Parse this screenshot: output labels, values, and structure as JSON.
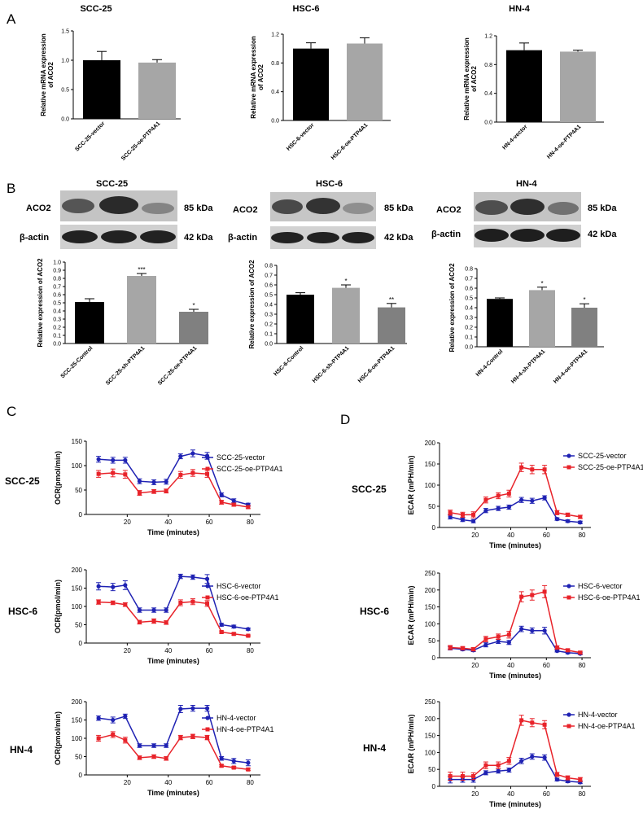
{
  "panels": {
    "a": "A",
    "b": "B",
    "c": "C",
    "d": "D"
  },
  "row_labels": {
    "scc25": "SCC-25",
    "hsc6": "HSC-6",
    "hn4": "HN-4"
  },
  "blots": [
    {
      "title": "SCC-25",
      "band1": "ACO2",
      "band2": "β-actin",
      "kda1": "85 kDa",
      "kda2": "42 kDa"
    },
    {
      "title": "HSC-6",
      "band1": "ACO2",
      "band2": "β-actin",
      "kda1": "85 kDa",
      "kda2": "42 kDa"
    },
    {
      "title": "HN-4",
      "band1": "ACO2",
      "band2": "β-actin",
      "kda1": "85 kDa",
      "kda2": "42 kDa"
    }
  ],
  "chart_data": [
    {
      "id": "A1",
      "type": "bar",
      "title": "SCC-25",
      "ylabel": "Relative mRNA expression of ACO2",
      "xlabel": "",
      "categories": [
        "SCC-25-vector",
        "SCC-25-oe-PTP4A1"
      ],
      "values": [
        1.0,
        0.96
      ],
      "errors": [
        0.15,
        0.05
      ],
      "colors": [
        "#000000",
        "#a6a6a6"
      ],
      "ylim": [
        0,
        1.5
      ],
      "yticks": [
        "0.0",
        "0.5",
        "1.0",
        "1.5"
      ],
      "stars": [
        "",
        ""
      ]
    },
    {
      "id": "A2",
      "type": "bar",
      "title": "HSC-6",
      "ylabel": "Relative mRNA expression of ACO2",
      "xlabel": "",
      "categories": [
        "HSC-6-vector",
        "HSC-6-oe-PTP4A1"
      ],
      "values": [
        1.0,
        1.07
      ],
      "errors": [
        0.08,
        0.08
      ],
      "colors": [
        "#000000",
        "#a6a6a6"
      ],
      "ylim": [
        0,
        1.2
      ],
      "yticks": [
        "0.0",
        "0.4",
        "0.8",
        "1.2"
      ],
      "stars": [
        "",
        ""
      ]
    },
    {
      "id": "A3",
      "type": "bar",
      "title": "HN-4",
      "ylabel": "Relative mRNA expression of ACO2",
      "xlabel": "",
      "categories": [
        "HN-4-vector",
        "HN-4-oe-PTP4A1"
      ],
      "values": [
        1.0,
        0.98
      ],
      "errors": [
        0.1,
        0.02
      ],
      "colors": [
        "#000000",
        "#a6a6a6"
      ],
      "ylim": [
        0,
        1.2
      ],
      "yticks": [
        "0.0",
        "0.4",
        "0.8",
        "1.2"
      ],
      "stars": [
        "",
        ""
      ]
    },
    {
      "id": "B1",
      "type": "bar",
      "title": "",
      "ylabel": "Relative expression of ACO2",
      "xlabel": "",
      "categories": [
        "SCC-25-Control",
        "SCC-25-sh-PTP4A1",
        "SCC-25-oe-PTP4A1"
      ],
      "values": [
        0.51,
        0.83,
        0.39
      ],
      "errors": [
        0.04,
        0.03,
        0.03
      ],
      "colors": [
        "#000000",
        "#a6a6a6",
        "#808080"
      ],
      "ylim": [
        0,
        1.0
      ],
      "yticks": [
        "0.0",
        "0.1",
        "0.2",
        "0.3",
        "0.4",
        "0.5",
        "0.6",
        "0.7",
        "0.8",
        "0.9",
        "1.0"
      ],
      "stars": [
        "",
        "***",
        "*"
      ]
    },
    {
      "id": "B2",
      "type": "bar",
      "title": "",
      "ylabel": "Relative expression of ACO2",
      "xlabel": "",
      "categories": [
        "HSC-6-Control",
        "HSC-6-sh-PTP4A1",
        "HSC-6-oe-PTP4A1"
      ],
      "values": [
        0.5,
        0.57,
        0.37
      ],
      "errors": [
        0.02,
        0.03,
        0.04
      ],
      "colors": [
        "#000000",
        "#a6a6a6",
        "#808080"
      ],
      "ylim": [
        0,
        0.8
      ],
      "yticks": [
        "0.0",
        "0.1",
        "0.2",
        "0.3",
        "0.4",
        "0.5",
        "0.6",
        "0.7",
        "0.8"
      ],
      "stars": [
        "",
        "*",
        "**"
      ]
    },
    {
      "id": "B3",
      "type": "bar",
      "title": "",
      "ylabel": "Relative expression of ACO2",
      "xlabel": "",
      "categories": [
        "HN-4-Control",
        "HN-4-sh-PTP4A1",
        "HN-4-oe-PTP4A1"
      ],
      "values": [
        0.49,
        0.58,
        0.4
      ],
      "errors": [
        0.01,
        0.03,
        0.04
      ],
      "colors": [
        "#000000",
        "#a6a6a6",
        "#808080"
      ],
      "ylim": [
        0,
        0.8
      ],
      "yticks": [
        "0.0",
        "0.1",
        "0.2",
        "0.3",
        "0.4",
        "0.5",
        "0.6",
        "0.7",
        "0.8"
      ],
      "stars": [
        "",
        "*",
        "*"
      ]
    },
    {
      "id": "C1",
      "type": "line",
      "ylabel": "OCR(pmol/min)",
      "xlabel": "Time (minutes)",
      "ylim": [
        0,
        150
      ],
      "yticks": [
        "0",
        "50",
        "100",
        "150"
      ],
      "xticks": [
        "20",
        "40",
        "60",
        "80"
      ],
      "xlim": [
        0,
        85
      ],
      "x": [
        6,
        13,
        19,
        26,
        33,
        39,
        46,
        52,
        59,
        66,
        72,
        79
      ],
      "series": [
        {
          "name": "SCC-25-vector",
          "color": "#1f22b3",
          "marker": "circle",
          "values": [
            113,
            111,
            111,
            68,
            66,
            67,
            119,
            125,
            120,
            40,
            28,
            20
          ],
          "errors": [
            6,
            6,
            6,
            5,
            5,
            5,
            5,
            7,
            7,
            4,
            4,
            3
          ]
        },
        {
          "name": "SCC-25-oe-PTP4A1",
          "color": "#e8232a",
          "marker": "square",
          "values": [
            83,
            85,
            82,
            44,
            47,
            48,
            81,
            85,
            83,
            25,
            20,
            15
          ],
          "errors": [
            7,
            8,
            8,
            5,
            4,
            4,
            7,
            7,
            7,
            4,
            3,
            3
          ]
        }
      ]
    },
    {
      "id": "C2",
      "type": "line",
      "ylabel": "OCR(pmol/min)",
      "xlabel": "Time (minutes)",
      "ylim": [
        0,
        200
      ],
      "yticks": [
        "0",
        "50",
        "100",
        "150",
        "200"
      ],
      "xticks": [
        "20",
        "40",
        "60",
        "80"
      ],
      "xlim": [
        0,
        85
      ],
      "x": [
        6,
        13,
        19,
        26,
        33,
        39,
        46,
        52,
        59,
        66,
        72,
        79
      ],
      "series": [
        {
          "name": "HSC-6-vector",
          "color": "#1f22b3",
          "marker": "circle",
          "values": [
            155,
            153,
            158,
            90,
            90,
            90,
            182,
            180,
            175,
            50,
            45,
            38
          ],
          "errors": [
            10,
            10,
            12,
            6,
            6,
            6,
            6,
            6,
            12,
            4,
            4,
            3
          ]
        },
        {
          "name": "HSC-6-oe-PTP4A1",
          "color": "#e8232a",
          "marker": "square",
          "values": [
            112,
            110,
            105,
            57,
            60,
            56,
            110,
            113,
            108,
            30,
            25,
            20
          ],
          "errors": [
            6,
            5,
            5,
            5,
            6,
            5,
            8,
            8,
            8,
            3,
            3,
            2
          ]
        }
      ]
    },
    {
      "id": "C3",
      "type": "line",
      "ylabel": "OCR(pmol/min)",
      "xlabel": "Time (minutes)",
      "ylim": [
        0,
        200
      ],
      "yticks": [
        "0",
        "50",
        "100",
        "150",
        "200"
      ],
      "xticks": [
        "20",
        "40",
        "60",
        "80"
      ],
      "xlim": [
        0,
        85
      ],
      "x": [
        6,
        13,
        19,
        26,
        33,
        39,
        46,
        52,
        59,
        66,
        72,
        79
      ],
      "series": [
        {
          "name": "HN-4-vector",
          "color": "#1f22b3",
          "marker": "circle",
          "values": [
            155,
            150,
            160,
            80,
            80,
            80,
            180,
            182,
            182,
            45,
            38,
            33
          ],
          "errors": [
            6,
            8,
            6,
            5,
            5,
            5,
            10,
            8,
            8,
            5,
            7,
            8
          ]
        },
        {
          "name": "HN-4-oe-PTP4A1",
          "color": "#e8232a",
          "marker": "square",
          "values": [
            100,
            110,
            95,
            47,
            50,
            45,
            102,
            105,
            102,
            25,
            20,
            15
          ],
          "errors": [
            8,
            8,
            8,
            5,
            5,
            5,
            6,
            6,
            6,
            3,
            3,
            3
          ]
        }
      ]
    },
    {
      "id": "D1",
      "type": "line",
      "ylabel": "ECAR (mPH/min)",
      "xlabel": "Time (minutes)",
      "ylim": [
        0,
        200
      ],
      "yticks": [
        "0",
        "50",
        "100",
        "150",
        "200"
      ],
      "xticks": [
        "20",
        "40",
        "60",
        "80"
      ],
      "xlim": [
        0,
        85
      ],
      "x": [
        6,
        13,
        19,
        26,
        33,
        39,
        46,
        52,
        59,
        66,
        72,
        79
      ],
      "series": [
        {
          "name": "SCC-25-vector",
          "color": "#1f22b3",
          "marker": "circle",
          "values": [
            25,
            18,
            15,
            40,
            45,
            48,
            65,
            63,
            70,
            20,
            15,
            12
          ],
          "errors": [
            5,
            4,
            4,
            5,
            5,
            5,
            6,
            6,
            5,
            3,
            3,
            3
          ]
        },
        {
          "name": "SCC-25-oe-PTP4A1",
          "color": "#e8232a",
          "marker": "square",
          "values": [
            35,
            30,
            30,
            65,
            75,
            80,
            142,
            137,
            137,
            35,
            30,
            25
          ],
          "errors": [
            6,
            6,
            7,
            7,
            7,
            8,
            10,
            10,
            10,
            5,
            4,
            4
          ]
        }
      ]
    },
    {
      "id": "D2",
      "type": "line",
      "ylabel": "ECAR (mPH/min)",
      "xlabel": "Time (minutes)",
      "ylim": [
        0,
        250
      ],
      "yticks": [
        "0",
        "50",
        "100",
        "150",
        "200",
        "250"
      ],
      "xticks": [
        "20",
        "40",
        "60",
        "80"
      ],
      "xlim": [
        0,
        85
      ],
      "x": [
        6,
        13,
        19,
        26,
        33,
        39,
        46,
        52,
        59,
        66,
        72,
        79
      ],
      "series": [
        {
          "name": "HSC-6-vector",
          "color": "#1f22b3",
          "marker": "circle",
          "values": [
            28,
            25,
            22,
            38,
            48,
            45,
            85,
            80,
            80,
            20,
            15,
            12
          ],
          "errors": [
            5,
            4,
            4,
            6,
            6,
            6,
            8,
            8,
            10,
            3,
            3,
            3
          ]
        },
        {
          "name": "HSC-6-oe-PTP4A1",
          "color": "#e8232a",
          "marker": "square",
          "values": [
            30,
            28,
            25,
            55,
            62,
            68,
            180,
            185,
            195,
            30,
            22,
            15
          ],
          "errors": [
            6,
            5,
            5,
            8,
            8,
            10,
            15,
            15,
            18,
            5,
            4,
            4
          ]
        }
      ]
    },
    {
      "id": "D3",
      "type": "line",
      "ylabel": "ECAR (mPH/min)",
      "xlabel": "Time (minutes)",
      "ylim": [
        0,
        250
      ],
      "yticks": [
        "0",
        "50",
        "100",
        "150",
        "200",
        "250"
      ],
      "xticks": [
        "20",
        "40",
        "60",
        "80"
      ],
      "xlim": [
        0,
        85
      ],
      "x": [
        6,
        13,
        19,
        26,
        33,
        39,
        46,
        52,
        59,
        66,
        72,
        79
      ],
      "series": [
        {
          "name": "HN-4-vector",
          "color": "#1f22b3",
          "marker": "circle",
          "values": [
            20,
            20,
            20,
            40,
            45,
            48,
            75,
            88,
            85,
            20,
            15,
            12
          ],
          "errors": [
            10,
            8,
            8,
            6,
            6,
            6,
            8,
            8,
            8,
            4,
            4,
            4
          ]
        },
        {
          "name": "HN-4-oe-PTP4A1",
          "color": "#e8232a",
          "marker": "square",
          "values": [
            30,
            30,
            30,
            62,
            62,
            75,
            195,
            188,
            182,
            35,
            25,
            20
          ],
          "errors": [
            12,
            12,
            10,
            10,
            10,
            10,
            15,
            12,
            12,
            6,
            6,
            6
          ]
        }
      ]
    }
  ]
}
